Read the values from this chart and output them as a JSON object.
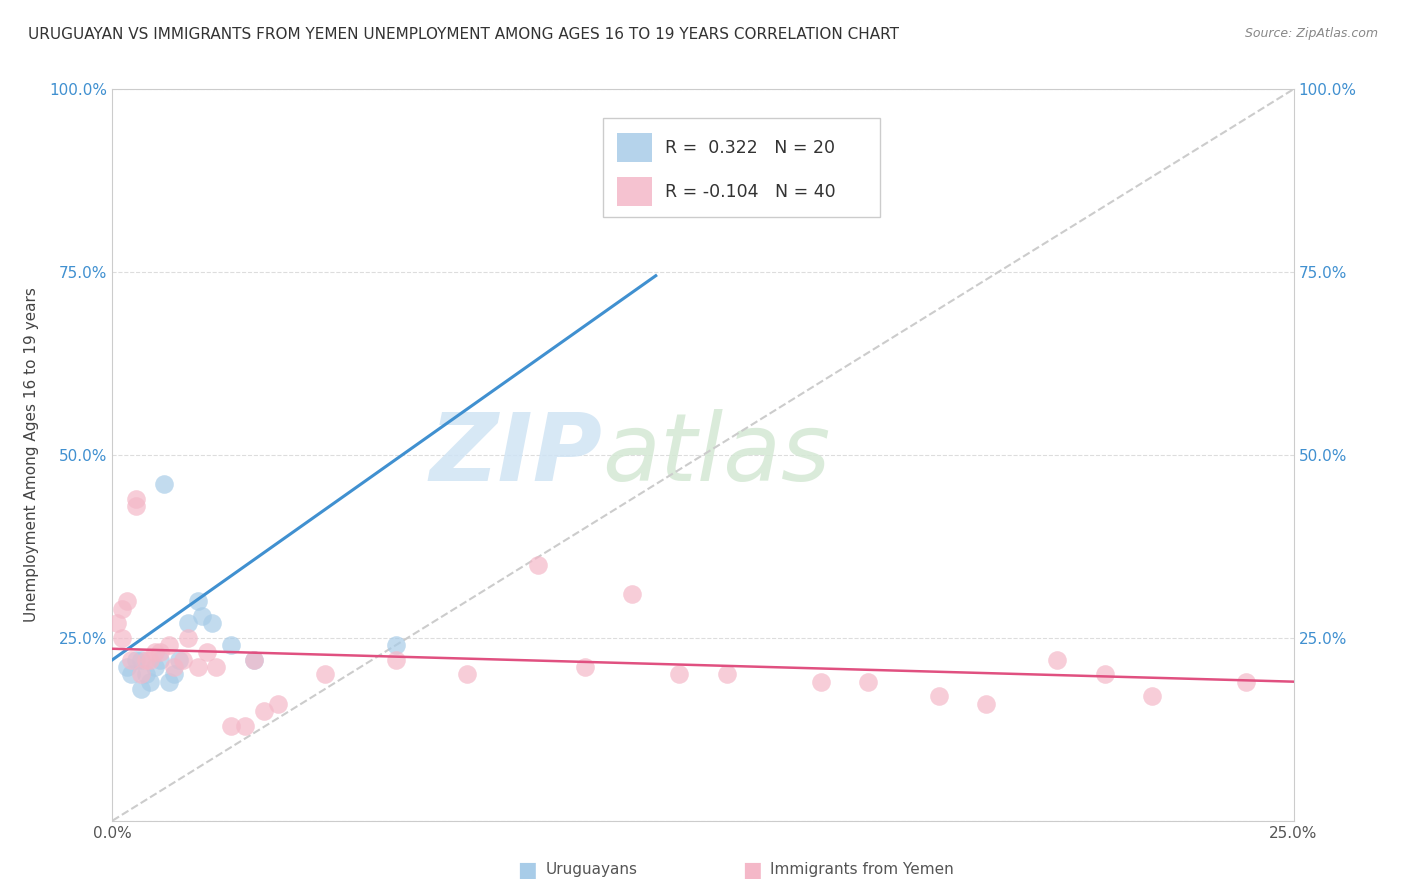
{
  "title": "URUGUAYAN VS IMMIGRANTS FROM YEMEN UNEMPLOYMENT AMONG AGES 16 TO 19 YEARS CORRELATION CHART",
  "source": "Source: ZipAtlas.com",
  "ylabel": "Unemployment Among Ages 16 to 19 years",
  "xlim": [
    0.0,
    0.25
  ],
  "ylim": [
    0.0,
    1.0
  ],
  "xticks": [
    0.0,
    0.05,
    0.1,
    0.15,
    0.2,
    0.25
  ],
  "xtick_labels": [
    "0.0%",
    "",
    "",
    "",
    "",
    "25.0%"
  ],
  "yticks": [
    0.0,
    0.25,
    0.5,
    0.75,
    1.0
  ],
  "ytick_labels_left": [
    "",
    "25.0%",
    "50.0%",
    "75.0%",
    "100.0%"
  ],
  "ytick_labels_right": [
    "",
    "25.0%",
    "50.0%",
    "75.0%",
    "100.0%"
  ],
  "blue_scatter_x": [
    0.003,
    0.004,
    0.005,
    0.006,
    0.006,
    0.007,
    0.008,
    0.009,
    0.01,
    0.011,
    0.012,
    0.013,
    0.014,
    0.016,
    0.018,
    0.019,
    0.021,
    0.025,
    0.03,
    0.06
  ],
  "blue_scatter_y": [
    0.21,
    0.2,
    0.22,
    0.18,
    0.22,
    0.2,
    0.19,
    0.21,
    0.22,
    0.46,
    0.19,
    0.2,
    0.22,
    0.27,
    0.3,
    0.28,
    0.27,
    0.24,
    0.22,
    0.24
  ],
  "pink_scatter_x": [
    0.001,
    0.002,
    0.002,
    0.003,
    0.004,
    0.005,
    0.005,
    0.006,
    0.007,
    0.008,
    0.009,
    0.01,
    0.012,
    0.013,
    0.015,
    0.016,
    0.018,
    0.02,
    0.022,
    0.025,
    0.028,
    0.03,
    0.032,
    0.035,
    0.045,
    0.06,
    0.075,
    0.09,
    0.1,
    0.11,
    0.12,
    0.13,
    0.15,
    0.16,
    0.175,
    0.185,
    0.2,
    0.21,
    0.22,
    0.24
  ],
  "pink_scatter_y": [
    0.27,
    0.25,
    0.29,
    0.3,
    0.22,
    0.44,
    0.43,
    0.2,
    0.22,
    0.22,
    0.23,
    0.23,
    0.24,
    0.21,
    0.22,
    0.25,
    0.21,
    0.23,
    0.21,
    0.13,
    0.13,
    0.22,
    0.15,
    0.16,
    0.2,
    0.22,
    0.2,
    0.35,
    0.21,
    0.31,
    0.2,
    0.2,
    0.19,
    0.19,
    0.17,
    0.16,
    0.22,
    0.2,
    0.17,
    0.19
  ],
  "blue_line_x": [
    0.0,
    0.115
  ],
  "blue_line_y": [
    0.22,
    0.745
  ],
  "pink_line_x": [
    0.0,
    0.25
  ],
  "pink_line_y": [
    0.235,
    0.19
  ],
  "dashed_line_x": [
    0.0,
    0.25
  ],
  "dashed_line_y": [
    0.0,
    1.0
  ],
  "blue_color": "#a8cce8",
  "pink_color": "#f4b8c8",
  "blue_line_color": "#4090d0",
  "pink_line_color": "#e05080",
  "dashed_line_color": "#cccccc",
  "watermark_zip": "ZIP",
  "watermark_atlas": "atlas",
  "background_color": "#ffffff",
  "grid_color": "#dddddd",
  "legend_r_blue": "R =  0.322",
  "legend_n_blue": "N = 20",
  "legend_r_pink": "R = -0.104",
  "legend_n_pink": "N = 40"
}
